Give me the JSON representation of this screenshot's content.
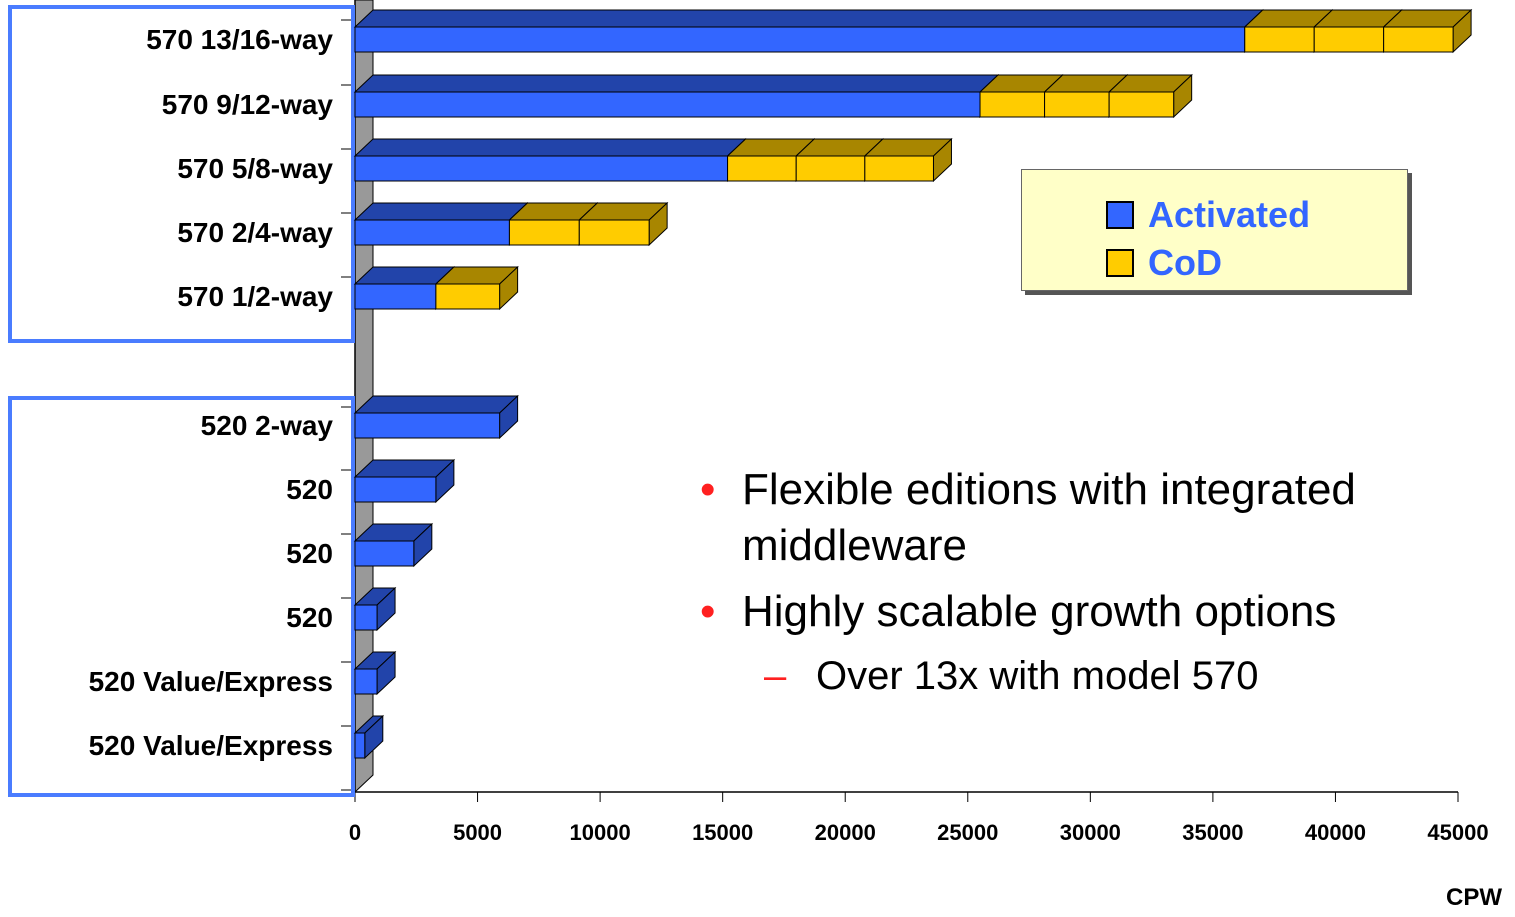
{
  "chart_data": {
    "type": "bar",
    "orientation": "horizontal",
    "stacked": true,
    "categories": [
      "570 13/16-way",
      "570 9/12-way",
      "570 5/8-way",
      "570 2/4-way",
      "570 1/2-way",
      "520 2-way",
      "520",
      "520",
      "520",
      "520 Value/Express",
      "520 Value/Express"
    ],
    "series": [
      {
        "name": "Activated",
        "color": "#3366ff",
        "side_color": "#2244aa",
        "values": [
          36300,
          25500,
          15200,
          6300,
          3300,
          5900,
          3300,
          2400,
          900,
          900,
          400
        ]
      },
      {
        "name": "CoD",
        "color": "#ffcc00",
        "side_color": "#a88600",
        "values": [
          8500,
          7900,
          8400,
          5700,
          2600,
          0,
          0,
          0,
          0,
          0,
          0
        ],
        "segments": [
          3,
          3,
          3,
          2,
          1,
          0,
          0,
          0,
          0,
          0,
          0
        ]
      }
    ],
    "xlim": [
      0,
      45000
    ],
    "xticks": [
      0,
      5000,
      10000,
      15000,
      20000,
      25000,
      30000,
      35000,
      40000,
      45000
    ],
    "xlabel": "CPW",
    "ylabel": "",
    "title": "",
    "groups": [
      {
        "categories": [
          "570 13/16-way",
          "570 9/12-way",
          "570 5/8-way",
          "570 2/4-way",
          "570 1/2-way"
        ]
      },
      {
        "categories": [
          "520 2-way",
          "520",
          "520",
          "520",
          "520 Value/Express",
          "520 Value/Express"
        ]
      }
    ],
    "legend": {
      "position": "top-right",
      "items": [
        {
          "label": "Activated",
          "color": "#3366ff"
        },
        {
          "label": "CoD",
          "color": "#ffcc00"
        }
      ]
    }
  },
  "bullets": [
    {
      "text": "Flexible editions with integrated middleware"
    },
    {
      "text": "Highly scalable growth options",
      "subs": [
        {
          "text": "Over 13x with model 570"
        }
      ]
    }
  ]
}
